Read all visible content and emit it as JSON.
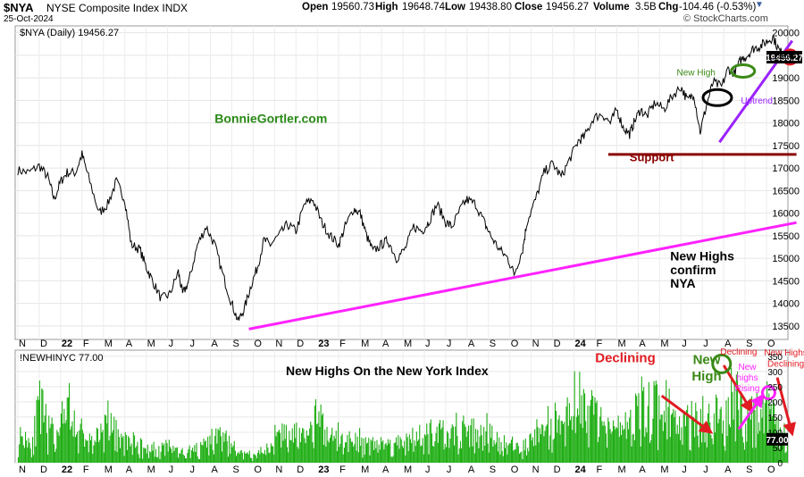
{
  "header": {
    "symbol": "$NYA",
    "name": "NYSE Composite Index INDX",
    "date": "25-Oct-2024",
    "brand": "© StockCharts.com",
    "ohlc": {
      "open_label": "Open",
      "open": "19560.73",
      "high_label": "High",
      "high": "19648.74",
      "low_label": "Low",
      "low": "19438.80",
      "close_label": "Close",
      "close": "19456.27",
      "volume_label": "Volume",
      "volume": "3.5B",
      "chg_label": "Chg",
      "chg": "-104.46 (-0.53%)"
    }
  },
  "colors": {
    "price": "#000000",
    "volume_bars": "#1fae14",
    "magenta": "#ff22ff",
    "purple": "#9b22ff",
    "support": "#8b0000",
    "olive": "#3a8a16",
    "red": "#e11b22",
    "grid": "#dddddd"
  },
  "chart_data": [
    {
      "type": "line",
      "panel": "price",
      "legend": "$NYA (Daily) 19456.27",
      "last_value_tag": "19456.27",
      "y_ticks": [
        13500,
        14000,
        14500,
        15000,
        15500,
        16000,
        16500,
        17000,
        17500,
        18000,
        18500,
        19000,
        19500,
        20000
      ],
      "ylim": [
        13200,
        20150
      ],
      "x_month_labels": [
        "N",
        "D",
        "22",
        "F",
        "M",
        "A",
        "M",
        "J",
        "J",
        "A",
        "S",
        "O",
        "N",
        "D",
        "23",
        "F",
        "M",
        "A",
        "M",
        "J",
        "J",
        "A",
        "S",
        "O",
        "N",
        "D",
        "24",
        "F",
        "M",
        "A",
        "M",
        "J",
        "J",
        "A",
        "S",
        "O"
      ],
      "x_month_index": [
        0,
        1,
        2,
        3,
        4,
        5,
        6,
        7,
        8,
        9,
        10,
        11,
        12,
        13,
        14,
        15,
        16,
        17,
        18,
        19,
        20,
        21,
        22,
        23,
        24,
        25,
        26,
        27,
        28,
        29,
        30,
        31,
        32,
        33,
        34,
        35
      ],
      "x_range_months": [
        0,
        36
      ],
      "series": [
        {
          "name": "$NYA",
          "x_month": [
            0,
            0.5,
            1,
            1.4,
            1.7,
            2,
            2.3,
            2.7,
            3.0,
            3.3,
            3.8,
            4.2,
            4.6,
            5.0,
            5.3,
            5.7,
            6.0,
            6.3,
            6.7,
            7.1,
            7.5,
            7.7,
            8.0,
            8.4,
            8.8,
            9.2,
            9.6,
            10.0,
            10.3,
            10.6,
            10.9,
            11.2,
            11.5,
            11.8,
            12.2,
            12.6,
            13.0,
            13.4,
            13.8,
            14.2,
            14.6,
            15.0,
            15.3,
            15.7,
            16.0,
            16.3,
            16.6,
            17.0,
            17.3,
            17.7,
            18.1,
            18.5,
            18.9,
            19.2,
            19.6,
            20.0,
            20.3,
            20.7,
            21.0,
            21.4,
            21.8,
            22.1,
            22.5,
            22.9,
            23.2,
            23.6,
            23.8,
            24.2,
            24.6,
            25.0,
            25.4,
            25.8,
            26.2,
            26.5,
            26.9,
            27.3,
            27.7,
            28.0,
            28.3,
            28.6,
            28.8,
            29.1,
            29.4,
            29.8,
            30.2,
            30.6,
            31.0,
            31.3,
            31.6,
            31.9,
            32.2,
            32.5,
            32.9,
            33.2,
            33.5,
            33.8,
            34.1,
            34.4,
            34.7,
            35.0,
            35.3,
            35.6,
            35.9
          ],
          "values": [
            16950,
            16900,
            17050,
            16800,
            16300,
            16700,
            16900,
            16900,
            17300,
            16800,
            16000,
            16200,
            16700,
            16300,
            15300,
            15200,
            14800,
            14500,
            14100,
            14200,
            14700,
            14200,
            14500,
            15300,
            15700,
            15300,
            14600,
            14000,
            13600,
            13900,
            14400,
            14800,
            15400,
            15300,
            15500,
            15750,
            15600,
            16200,
            16300,
            15800,
            15500,
            15300,
            15700,
            16100,
            16000,
            15500,
            15150,
            15300,
            15400,
            15000,
            15200,
            15700,
            15600,
            15800,
            16200,
            15800,
            15700,
            16100,
            16300,
            16200,
            15800,
            15500,
            15200,
            15000,
            14650,
            15200,
            15800,
            16300,
            16900,
            17100,
            16800,
            17200,
            17600,
            17700,
            18100,
            18200,
            18000,
            18300,
            17900,
            17750,
            18000,
            18300,
            18150,
            18450,
            18300,
            18600,
            18800,
            18500,
            18650,
            17800,
            18400,
            18900,
            18800,
            19200,
            19100,
            19400,
            19500,
            19650,
            19700,
            19800,
            19900,
            19600,
            19456
          ]
        }
      ],
      "annotations": [
        {
          "text": "BonnieGortler.com",
          "color": "#2a8a17",
          "x_month": 9.2,
          "y": 18000
        },
        {
          "text": "New High",
          "color": "#3a8a16",
          "x_month": 30.8,
          "y": 19050
        },
        {
          "text": "Uptrend",
          "color": "#9b22ff",
          "x_month": 33.8,
          "y": 18430
        },
        {
          "text": "Support",
          "color": "#8b0000",
          "x_month": 28.6,
          "y": 17150
        },
        {
          "text": "New Highs",
          "color": "#000000",
          "x_month": 30.5,
          "y": 14950
        },
        {
          "text": "confirm",
          "color": "#000000",
          "x_month": 30.5,
          "y": 14650
        },
        {
          "text": "NYA",
          "color": "#000000",
          "x_month": 30.5,
          "y": 14350
        }
      ],
      "lines": [
        {
          "kind": "trend",
          "color": "#ff22ff",
          "from": {
            "x_month": 10.8,
            "y": 13430
          },
          "to": {
            "x_month": 36.4,
            "y": 15790
          }
        },
        {
          "kind": "support",
          "color": "#8b0000",
          "from": {
            "x_month": 27.6,
            "y": 17300
          },
          "to": {
            "x_month": 36.4,
            "y": 17300
          }
        },
        {
          "kind": "uptrend",
          "color": "#9b22ff",
          "from": {
            "x_month": 32.8,
            "y": 17570
          },
          "to": {
            "x_month": 36.2,
            "y": 19820
          }
        }
      ],
      "ellipses": [
        {
          "color": "#000000",
          "x_month": 32.7,
          "y": 18560
        },
        {
          "color": "#3a8a16",
          "x_month": 33.9,
          "y": 19150
        },
        {
          "color": "#e11b22",
          "x_month": 36.1,
          "y": 19460
        }
      ]
    },
    {
      "type": "bar",
      "panel": "volume",
      "legend": "!NEWHINYC 77.00",
      "title": "New Highs On the New York Index",
      "last_value_tag": "77.00",
      "y_ticks": [
        0,
        50,
        100,
        150,
        200,
        250,
        300,
        350
      ],
      "ylim": [
        0,
        370
      ],
      "x_month_labels": [
        "N",
        "D",
        "22",
        "F",
        "M",
        "A",
        "M",
        "J",
        "J",
        "A",
        "S",
        "O",
        "N",
        "D",
        "23",
        "F",
        "M",
        "A",
        "M",
        "J",
        "J",
        "A",
        "S",
        "O",
        "N",
        "D",
        "24",
        "F",
        "M",
        "A",
        "M",
        "J",
        "J",
        "A",
        "S",
        "O"
      ],
      "x_month_index": [
        0,
        1,
        2,
        3,
        4,
        5,
        6,
        7,
        8,
        9,
        10,
        11,
        12,
        13,
        14,
        15,
        16,
        17,
        18,
        19,
        20,
        21,
        22,
        23,
        24,
        25,
        26,
        27,
        28,
        29,
        30,
        31,
        32,
        33,
        34,
        35
      ],
      "envelope_x_month": [
        0,
        0.3,
        0.6,
        1.0,
        1.5,
        2.0,
        2.4,
        3.0,
        3.5,
        4.0,
        4.5,
        5.0,
        5.5,
        6.0,
        6.5,
        7.0,
        7.5,
        8.0,
        8.5,
        9.0,
        9.5,
        10.0,
        10.5,
        11.0,
        11.5,
        12.0,
        12.5,
        13.0,
        13.5,
        14.0,
        14.5,
        15.0,
        15.5,
        16.0,
        16.5,
        17.0,
        17.5,
        18.0,
        18.5,
        19.0,
        19.5,
        20.0,
        20.5,
        21.0,
        21.5,
        22.0,
        22.5,
        23.0,
        23.5,
        24.0,
        24.5,
        25.0,
        25.5,
        26.0,
        26.5,
        27.0,
        27.5,
        28.0,
        28.5,
        29.0,
        29.5,
        30.0,
        30.5,
        31.0,
        31.5,
        32.0,
        32.5,
        33.0,
        33.3,
        33.6,
        34.0,
        34.3,
        34.6,
        35.0,
        35.3,
        35.6,
        36.0
      ],
      "envelope_values": [
        120,
        150,
        90,
        280,
        140,
        170,
        240,
        130,
        100,
        190,
        150,
        110,
        90,
        70,
        60,
        80,
        50,
        60,
        70,
        100,
        130,
        80,
        40,
        30,
        60,
        120,
        150,
        140,
        110,
        220,
        130,
        110,
        120,
        100,
        110,
        90,
        90,
        110,
        120,
        100,
        140,
        130,
        150,
        170,
        130,
        140,
        110,
        90,
        70,
        110,
        180,
        190,
        160,
        340,
        260,
        230,
        220,
        160,
        180,
        230,
        300,
        250,
        210,
        200,
        210,
        240,
        250,
        170,
        330,
        310,
        280,
        230,
        260,
        270,
        230,
        150,
        77
      ],
      "annotations": [
        {
          "text": "Declining",
          "color": "#e11b22",
          "x_month": 28.4,
          "y": 330
        },
        {
          "text": "New",
          "color": "#3a8a16",
          "x_month": 32.2,
          "y": 325
        },
        {
          "text": "High",
          "color": "#3a8a16",
          "x_month": 32.2,
          "y": 270
        },
        {
          "text": "Declining",
          "color": "#e11b22",
          "x_month": 33.7,
          "y": 355
        },
        {
          "text": "New",
          "color": "#ff22ff",
          "x_month": 34.1,
          "y": 305
        },
        {
          "text": "highs",
          "color": "#ff22ff",
          "x_month": 34.1,
          "y": 270
        },
        {
          "text": "Rising",
          "color": "#ff22ff",
          "x_month": 34.1,
          "y": 235
        },
        {
          "text": "New Highs",
          "color": "#e11b22",
          "x_month": 35.9,
          "y": 352
        },
        {
          "text": "Declining",
          "color": "#e11b22",
          "x_month": 35.9,
          "y": 315
        }
      ],
      "arrows": [
        {
          "color": "#e11b22",
          "from": {
            "x_month": 30.1,
            "y": 220
          },
          "to": {
            "x_month": 32.4,
            "y": 100
          }
        },
        {
          "color": "#e11b22",
          "from": {
            "x_month": 33.0,
            "y": 320
          },
          "to": {
            "x_month": 34.3,
            "y": 170
          }
        },
        {
          "color": "#ff22ff",
          "from": {
            "x_month": 33.7,
            "y": 110
          },
          "to": {
            "x_month": 34.8,
            "y": 220
          }
        },
        {
          "color": "#e11b22",
          "from": {
            "x_month": 35.5,
            "y": 280
          },
          "to": {
            "x_month": 36.2,
            "y": 95
          }
        }
      ],
      "ellipses": [
        {
          "color": "#3a8a16",
          "x_month": 32.9,
          "y": 325
        },
        {
          "color": "#ff22ff",
          "x_month": 35.1,
          "y": 230
        }
      ]
    }
  ]
}
